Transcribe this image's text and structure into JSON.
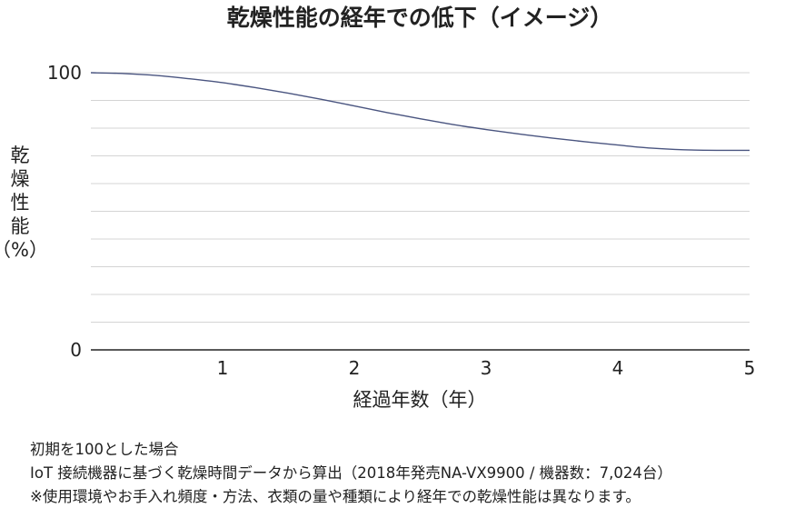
{
  "chart_data": {
    "type": "line",
    "title": "乾燥性能の経年での低下（イメージ）",
    "xlabel": "経過年数（年）",
    "ylabel": [
      "乾",
      "燥",
      "性",
      "能",
      "（%）"
    ],
    "x_ticks": [
      "1",
      "2",
      "3",
      "4",
      "5"
    ],
    "y_ticks": [
      "100",
      "0"
    ],
    "xlim": [
      0,
      5
    ],
    "ylim": [
      0,
      100
    ],
    "grid": true,
    "legend": "none",
    "line_color": "#4a5580",
    "series": [
      {
        "x": [
          0,
          0.25,
          0.5,
          0.75,
          1,
          1.25,
          1.5,
          1.75,
          2,
          2.25,
          2.5,
          2.75,
          3,
          3.25,
          3.5,
          3.75,
          4,
          4.25,
          4.5,
          4.75,
          5
        ],
        "values": [
          100,
          99.7,
          99,
          97.8,
          96.4,
          94.6,
          92.6,
          90.4,
          88,
          85.6,
          83.4,
          81.3,
          79.5,
          77.9,
          76.4,
          75.1,
          73.9,
          72.8,
          72.2,
          72.0,
          72.0
        ]
      }
    ]
  },
  "notes": [
    "初期を100とした場合",
    "IoT 接続機器に基づく乾燥時間データから算出（2018年発売NA-VX9900 / 機器数：7,024台）",
    "※使用環境やお手入れ頻度・方法、衣類の量や種類により経年での乾燥性能は異なります。"
  ]
}
